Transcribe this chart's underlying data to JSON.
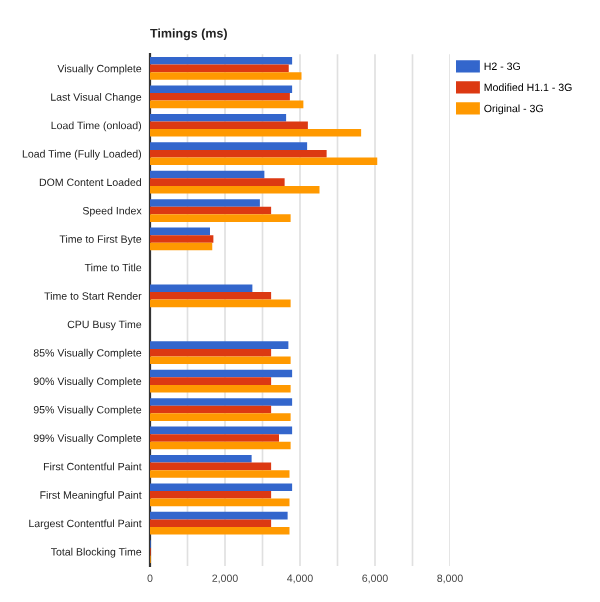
{
  "chart_data": {
    "type": "bar",
    "orientation": "horizontal",
    "title": "Timings (ms)",
    "categories": [
      "Visually Complete",
      "Last Visual Change",
      "Load Time (onload)",
      "Load Time (Fully Loaded)",
      "DOM Content Loaded",
      "Speed Index",
      "Time to First Byte",
      "Time to Title",
      "Time to Start Render",
      "CPU Busy Time",
      "85% Visually Complete",
      "90% Visually Complete",
      "95% Visually Complete",
      "99% Visually Complete",
      "First Contentful Paint",
      "First Meaningful Paint",
      "Largest Contentful Paint",
      "Total Blocking Time"
    ],
    "series": [
      {
        "name": "H2 - 3G",
        "color": "#3366cc",
        "values": [
          3790,
          3790,
          3630,
          4190,
          3050,
          2930,
          1600,
          null,
          2730,
          null,
          3690,
          3790,
          3790,
          3790,
          2710,
          3790,
          3670,
          20
        ]
      },
      {
        "name": "Modified H1.1 - 3G",
        "color": "#dc3912",
        "values": [
          3700,
          3730,
          4210,
          4710,
          3590,
          3230,
          1690,
          null,
          3230,
          null,
          3230,
          3230,
          3230,
          3440,
          3230,
          3230,
          3230,
          20
        ]
      },
      {
        "name": "Original - 3G",
        "color": "#ff9900",
        "values": [
          4040,
          4090,
          5630,
          6060,
          4520,
          3750,
          1660,
          null,
          3750,
          null,
          3750,
          3750,
          3750,
          3750,
          3720,
          3720,
          3720,
          20
        ]
      }
    ],
    "xlim": [
      0,
      8000
    ],
    "xticks": [
      0,
      {
        "value": 1000,
        "label": null
      },
      {
        "value": 2000,
        "label": "2,000"
      },
      {
        "value": 3000,
        "label": null
      },
      {
        "value": 4000,
        "label": "4,000"
      },
      {
        "value": 5000,
        "label": null
      },
      {
        "value": 6000,
        "label": "6,000"
      },
      {
        "value": 7000,
        "label": null
      },
      {
        "value": 8000,
        "label": "8,000"
      }
    ],
    "grid": "x",
    "legend": "right"
  }
}
